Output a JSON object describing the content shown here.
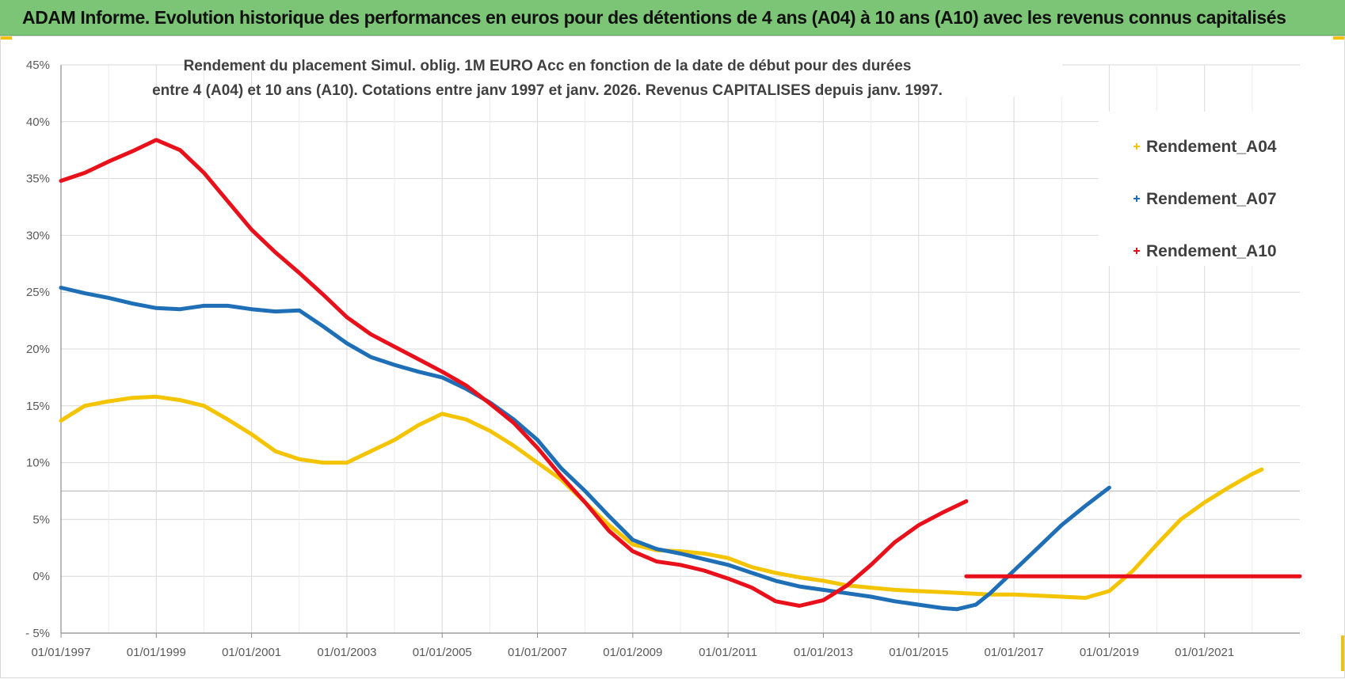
{
  "banner": {
    "title": "ADAM Informe. Evolution historique des performances en euros pour des détentions de 4 ans (A04) à 10 ans (A10) avec les revenus connus capitalisés"
  },
  "colors": {
    "banner_bg": "#7cc576",
    "A04": "#f5c400",
    "A07": "#1f6fb7",
    "A10": "#e8101a",
    "grid": "#d9d9d9",
    "accent_marks": "#f2c200"
  },
  "chart_data": {
    "type": "line",
    "title_lines": [
      "Rendement du placement Simul. oblig. 1M EURO Acc en fonction de la date de début pour des durées",
      "entre 4 (A04) et 10 ans (A10). Cotations entre janv 1997 et janv. 2026. Revenus CAPITALISES depuis janv. 1997."
    ],
    "xlabel": "",
    "ylabel": "",
    "x_range": [
      1997,
      2023
    ],
    "ylim": [
      -5,
      45
    ],
    "y_ticks": [
      -5,
      0,
      5,
      10,
      15,
      20,
      25,
      30,
      35,
      40,
      45
    ],
    "y_tick_labels": [
      "- 5%",
      "0%",
      "5%",
      "10%",
      "15%",
      "20%",
      "25%",
      "30%",
      "35%",
      "40%",
      "45%"
    ],
    "x_ticks": [
      1997,
      1999,
      2001,
      2003,
      2005,
      2007,
      2009,
      2011,
      2013,
      2015,
      2017,
      2019,
      2021
    ],
    "x_tick_labels": [
      "01/01/1997",
      "01/01/1999",
      "01/01/2001",
      "01/01/2003",
      "01/01/2005",
      "01/01/2007",
      "01/01/2009",
      "01/01/2011",
      "01/01/2013",
      "01/01/2015",
      "01/01/2017",
      "01/01/2019",
      "01/01/2021"
    ],
    "grid": true,
    "legend_position": "top-right",
    "series": [
      {
        "name": "Rendement_A04",
        "color": "#f5c400",
        "points": [
          [
            1997.0,
            13.7
          ],
          [
            1997.5,
            15.0
          ],
          [
            1998.0,
            15.4
          ],
          [
            1998.5,
            15.7
          ],
          [
            1999.0,
            15.8
          ],
          [
            1999.5,
            15.5
          ],
          [
            2000.0,
            15.0
          ],
          [
            2000.5,
            13.8
          ],
          [
            2001.0,
            12.5
          ],
          [
            2001.5,
            11.0
          ],
          [
            2002.0,
            10.3
          ],
          [
            2002.5,
            10.0
          ],
          [
            2003.0,
            10.0
          ],
          [
            2003.5,
            11.0
          ],
          [
            2004.0,
            12.0
          ],
          [
            2004.5,
            13.3
          ],
          [
            2005.0,
            14.3
          ],
          [
            2005.5,
            13.8
          ],
          [
            2006.0,
            12.8
          ],
          [
            2006.5,
            11.5
          ],
          [
            2007.0,
            10.0
          ],
          [
            2007.5,
            8.5
          ],
          [
            2008.0,
            6.5
          ],
          [
            2008.5,
            4.5
          ],
          [
            2009.0,
            2.8
          ],
          [
            2009.5,
            2.3
          ],
          [
            2010.0,
            2.2
          ],
          [
            2010.5,
            2.0
          ],
          [
            2011.0,
            1.6
          ],
          [
            2011.5,
            0.8
          ],
          [
            2012.0,
            0.3
          ],
          [
            2012.5,
            -0.1
          ],
          [
            2013.0,
            -0.4
          ],
          [
            2013.5,
            -0.8
          ],
          [
            2014.0,
            -1.0
          ],
          [
            2014.5,
            -1.2
          ],
          [
            2015.0,
            -1.3
          ],
          [
            2015.5,
            -1.4
          ],
          [
            2016.0,
            -1.5
          ],
          [
            2016.5,
            -1.6
          ],
          [
            2017.0,
            -1.6
          ],
          [
            2017.5,
            -1.7
          ],
          [
            2018.0,
            -1.8
          ],
          [
            2018.5,
            -1.9
          ],
          [
            2019.0,
            -1.3
          ],
          [
            2019.5,
            0.5
          ],
          [
            2020.0,
            2.8
          ],
          [
            2020.5,
            5.0
          ],
          [
            2021.0,
            6.5
          ],
          [
            2021.5,
            7.8
          ],
          [
            2022.0,
            9.0
          ],
          [
            2022.2,
            9.4
          ]
        ]
      },
      {
        "name": "Rendement_A07",
        "color": "#1f6fb7",
        "points": [
          [
            1997.0,
            25.4
          ],
          [
            1997.5,
            24.9
          ],
          [
            1998.0,
            24.5
          ],
          [
            1998.5,
            24.0
          ],
          [
            1999.0,
            23.6
          ],
          [
            1999.5,
            23.5
          ],
          [
            2000.0,
            23.8
          ],
          [
            2000.5,
            23.8
          ],
          [
            2001.0,
            23.5
          ],
          [
            2001.5,
            23.3
          ],
          [
            2002.0,
            23.4
          ],
          [
            2002.5,
            22.0
          ],
          [
            2003.0,
            20.5
          ],
          [
            2003.5,
            19.3
          ],
          [
            2004.0,
            18.6
          ],
          [
            2004.5,
            18.0
          ],
          [
            2005.0,
            17.5
          ],
          [
            2005.5,
            16.5
          ],
          [
            2006.0,
            15.3
          ],
          [
            2006.5,
            13.8
          ],
          [
            2007.0,
            12.0
          ],
          [
            2007.5,
            9.5
          ],
          [
            2008.0,
            7.5
          ],
          [
            2008.5,
            5.3
          ],
          [
            2009.0,
            3.2
          ],
          [
            2009.5,
            2.4
          ],
          [
            2010.0,
            2.0
          ],
          [
            2010.5,
            1.5
          ],
          [
            2011.0,
            1.0
          ],
          [
            2011.5,
            0.3
          ],
          [
            2012.0,
            -0.4
          ],
          [
            2012.5,
            -0.9
          ],
          [
            2013.0,
            -1.2
          ],
          [
            2013.5,
            -1.5
          ],
          [
            2014.0,
            -1.8
          ],
          [
            2014.5,
            -2.2
          ],
          [
            2015.0,
            -2.5
          ],
          [
            2015.5,
            -2.8
          ],
          [
            2015.8,
            -2.9
          ],
          [
            2016.2,
            -2.5
          ],
          [
            2016.5,
            -1.5
          ],
          [
            2017.0,
            0.5
          ],
          [
            2017.5,
            2.5
          ],
          [
            2018.0,
            4.5
          ],
          [
            2018.5,
            6.2
          ],
          [
            2019.0,
            7.8
          ]
        ]
      },
      {
        "name": "Rendement_A10",
        "color": "#e8101a",
        "points": [
          [
            1997.0,
            34.8
          ],
          [
            1997.5,
            35.5
          ],
          [
            1998.0,
            36.5
          ],
          [
            1998.5,
            37.4
          ],
          [
            1999.0,
            38.4
          ],
          [
            1999.5,
            37.5
          ],
          [
            2000.0,
            35.5
          ],
          [
            2000.5,
            33.0
          ],
          [
            2001.0,
            30.5
          ],
          [
            2001.5,
            28.5
          ],
          [
            2002.0,
            26.7
          ],
          [
            2002.5,
            24.8
          ],
          [
            2003.0,
            22.8
          ],
          [
            2003.5,
            21.3
          ],
          [
            2004.0,
            20.2
          ],
          [
            2004.5,
            19.1
          ],
          [
            2005.0,
            18.0
          ],
          [
            2005.5,
            16.8
          ],
          [
            2006.0,
            15.2
          ],
          [
            2006.5,
            13.5
          ],
          [
            2007.0,
            11.3
          ],
          [
            2007.5,
            8.8
          ],
          [
            2008.0,
            6.5
          ],
          [
            2008.5,
            4.0
          ],
          [
            2009.0,
            2.2
          ],
          [
            2009.5,
            1.3
          ],
          [
            2010.0,
            1.0
          ],
          [
            2010.5,
            0.5
          ],
          [
            2011.0,
            -0.2
          ],
          [
            2011.5,
            -1.0
          ],
          [
            2012.0,
            -2.2
          ],
          [
            2012.5,
            -2.6
          ],
          [
            2013.0,
            -2.1
          ],
          [
            2013.5,
            -0.8
          ],
          [
            2014.0,
            1.0
          ],
          [
            2014.5,
            3.0
          ],
          [
            2015.0,
            4.5
          ],
          [
            2015.5,
            5.6
          ],
          [
            2016.0,
            6.6
          ]
        ]
      },
      {
        "name": "Rendement_A10",
        "color": "#e8101a",
        "points": [
          [
            2016.0,
            0.0
          ],
          [
            2018.0,
            0.0
          ],
          [
            2020.0,
            0.0
          ],
          [
            2022.0,
            0.0
          ],
          [
            2023.0,
            0.0
          ]
        ]
      }
    ],
    "legend": [
      {
        "label": "Rendement_A04",
        "color": "#f5c400"
      },
      {
        "label": "Rendement_A07",
        "color": "#1f6fb7"
      },
      {
        "label": "Rendement_A10",
        "color": "#e8101a"
      }
    ]
  }
}
